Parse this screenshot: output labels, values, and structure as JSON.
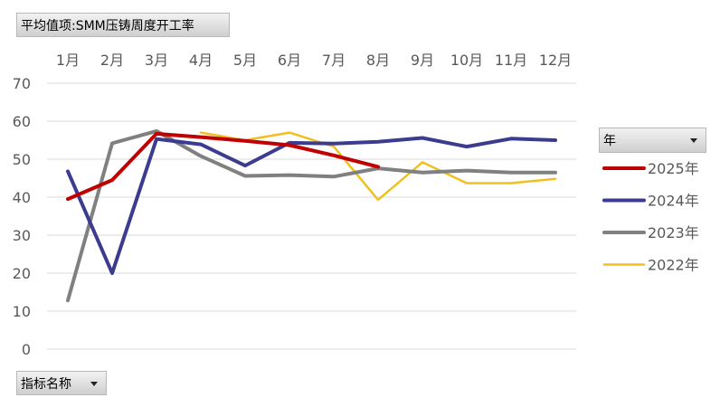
{
  "pivot": {
    "value_field_label": "平均值项:SMM压铸周度开工率",
    "axis_field_label": "指标名称",
    "legend_field_label": "年"
  },
  "chart_data": {
    "type": "line",
    "categories": [
      "1月",
      "2月",
      "3月",
      "4月",
      "5月",
      "6月",
      "7月",
      "8月",
      "9月",
      "10月",
      "11月",
      "12月"
    ],
    "ylim": [
      0,
      70
    ],
    "yticks": [
      0,
      10,
      20,
      30,
      40,
      50,
      60,
      70
    ],
    "grid": true,
    "legend_position": "right",
    "series": [
      {
        "name": "2025年",
        "color": "#c00000",
        "values": [
          39.5,
          44.5,
          56.7,
          55.8,
          54.8,
          53.7,
          51.0,
          48.0,
          null,
          null,
          null,
          null
        ]
      },
      {
        "name": "2024年",
        "color": "#3b3b8f",
        "values": [
          46.8,
          20.0,
          55.3,
          53.9,
          48.3,
          54.3,
          54.1,
          54.6,
          55.6,
          53.3,
          55.4,
          55.0
        ]
      },
      {
        "name": "2023年",
        "color": "#808080",
        "values": [
          12.8,
          54.2,
          57.4,
          50.8,
          45.6,
          45.8,
          45.4,
          47.6,
          46.5,
          47.0,
          46.5,
          46.5
        ]
      },
      {
        "name": "2022年",
        "color": "#f0c020",
        "values": [
          null,
          null,
          null,
          57.0,
          55.0,
          57.0,
          53.3,
          39.3,
          49.2,
          43.7,
          43.7,
          44.8
        ]
      }
    ]
  }
}
